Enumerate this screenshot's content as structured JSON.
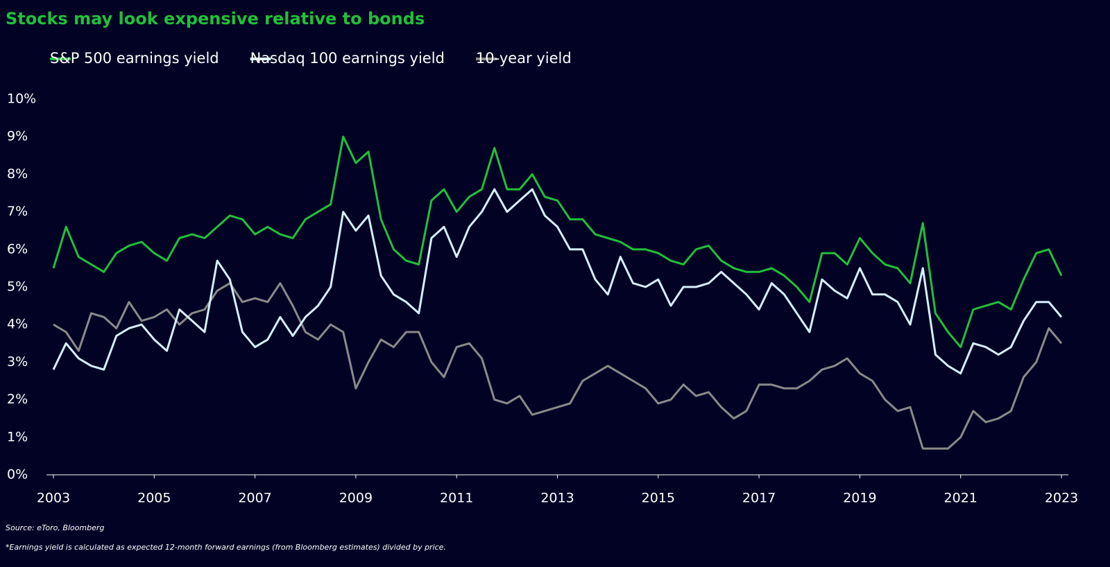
{
  "chart_data": {
    "type": "line",
    "title": "Stocks may look expensive relative to bonds",
    "source": "Source: eToro, Bloomberg",
    "footnote": "*Earnings yield is calculated as expected 12-month forward earnings (from Bloomberg estimates) divided by price.",
    "x": [
      2003,
      2003.25,
      2003.5,
      2003.75,
      2004,
      2004.25,
      2004.5,
      2004.75,
      2005,
      2005.25,
      2005.5,
      2005.75,
      2006,
      2006.25,
      2006.5,
      2006.75,
      2007,
      2007.25,
      2007.5,
      2007.75,
      2008,
      2008.25,
      2008.5,
      2008.75,
      2009,
      2009.25,
      2009.5,
      2009.75,
      2010,
      2010.25,
      2010.5,
      2010.75,
      2011,
      2011.25,
      2011.5,
      2011.75,
      2012,
      2012.25,
      2012.5,
      2012.75,
      2013,
      2013.25,
      2013.5,
      2013.75,
      2014,
      2014.25,
      2014.5,
      2014.75,
      2015,
      2015.25,
      2015.5,
      2015.75,
      2016,
      2016.25,
      2016.5,
      2016.75,
      2017,
      2017.25,
      2017.5,
      2017.75,
      2018,
      2018.25,
      2018.5,
      2018.75,
      2019,
      2019.25,
      2019.5,
      2019.75,
      2020,
      2020.25,
      2020.5,
      2020.75,
      2021,
      2021.25,
      2021.5,
      2021.75,
      2022,
      2022.25,
      2022.5,
      2022.75,
      2023
    ],
    "series": [
      {
        "name": "S&P 500 earnings yield",
        "color": "#22c03a",
        "values": [
          5.5,
          6.6,
          5.8,
          5.6,
          5.4,
          5.9,
          6.1,
          6.2,
          5.9,
          5.7,
          6.3,
          6.4,
          6.3,
          6.6,
          6.9,
          6.8,
          6.4,
          6.6,
          6.4,
          6.3,
          6.8,
          7.0,
          7.2,
          9.0,
          8.3,
          8.6,
          6.8,
          6.0,
          5.7,
          5.6,
          7.3,
          7.6,
          7.0,
          7.4,
          7.6,
          8.7,
          7.6,
          7.6,
          8.0,
          7.4,
          7.3,
          6.8,
          6.8,
          6.4,
          6.3,
          6.2,
          6.0,
          6.0,
          5.9,
          5.7,
          5.6,
          6.0,
          6.1,
          5.7,
          5.5,
          5.4,
          5.4,
          5.5,
          5.3,
          5.0,
          4.6,
          5.9,
          5.9,
          5.6,
          6.3,
          5.9,
          5.6,
          5.5,
          5.1,
          6.7,
          4.3,
          3.8,
          3.4,
          4.4,
          4.5,
          4.6,
          4.4,
          5.2,
          5.9,
          6.0,
          5.3
        ]
      },
      {
        "name": "Nasdaq 100 earnings yield",
        "color": "#d6f0ff",
        "values": [
          2.8,
          3.5,
          3.1,
          2.9,
          2.8,
          3.7,
          3.9,
          4.0,
          3.6,
          3.3,
          4.4,
          4.1,
          3.8,
          5.7,
          5.2,
          3.8,
          3.4,
          3.6,
          4.2,
          3.7,
          4.2,
          4.5,
          5.0,
          7.0,
          6.5,
          6.9,
          5.3,
          4.8,
          4.6,
          4.3,
          6.3,
          6.6,
          5.8,
          6.6,
          7.0,
          7.6,
          7.0,
          7.3,
          7.6,
          6.9,
          6.6,
          6.0,
          6.0,
          5.2,
          4.8,
          5.8,
          5.1,
          5.0,
          5.2,
          4.5,
          5.0,
          5.0,
          5.1,
          5.4,
          5.1,
          4.8,
          4.4,
          5.1,
          4.8,
          4.3,
          3.8,
          5.2,
          4.9,
          4.7,
          5.5,
          4.8,
          4.8,
          4.6,
          4.0,
          5.5,
          3.2,
          2.9,
          2.7,
          3.5,
          3.4,
          3.2,
          3.4,
          4.1,
          4.6,
          4.6,
          4.2
        ]
      },
      {
        "name": "10-year yield",
        "color": "#8a8a8a",
        "values": [
          4.0,
          3.8,
          3.3,
          4.3,
          4.2,
          3.9,
          4.6,
          4.1,
          4.2,
          4.4,
          4.0,
          4.3,
          4.4,
          4.9,
          5.1,
          4.6,
          4.7,
          4.6,
          5.1,
          4.5,
          3.8,
          3.6,
          4.0,
          3.8,
          2.3,
          3.0,
          3.6,
          3.4,
          3.8,
          3.8,
          3.0,
          2.6,
          3.4,
          3.5,
          3.1,
          2.0,
          1.9,
          2.1,
          1.6,
          1.7,
          1.8,
          1.9,
          2.5,
          2.7,
          2.9,
          2.7,
          2.5,
          2.3,
          1.9,
          2.0,
          2.4,
          2.1,
          2.2,
          1.8,
          1.5,
          1.7,
          2.4,
          2.4,
          2.3,
          2.3,
          2.5,
          2.8,
          2.9,
          3.1,
          2.7,
          2.5,
          2.0,
          1.7,
          1.8,
          0.7,
          0.7,
          0.7,
          1.0,
          1.7,
          1.4,
          1.5,
          1.7,
          2.6,
          3.0,
          3.9,
          3.5
        ]
      }
    ],
    "xlim": [
      2003,
      2023
    ],
    "xticks": [
      2003,
      2005,
      2007,
      2009,
      2011,
      2013,
      2015,
      2017,
      2019,
      2021,
      2023
    ],
    "ylim": [
      0,
      10
    ],
    "yticks": [
      {
        "value": 0,
        "label": "0%"
      },
      {
        "value": 1,
        "label": "1%"
      },
      {
        "value": 2,
        "label": "2%"
      },
      {
        "value": 3,
        "label": "3%"
      },
      {
        "value": 4,
        "label": "4%"
      },
      {
        "value": 5,
        "label": "5%"
      },
      {
        "value": 6,
        "label": "6%"
      },
      {
        "value": 7,
        "label": "7%"
      },
      {
        "value": 8,
        "label": "8%"
      },
      {
        "value": 9,
        "label": "9%"
      },
      {
        "value": 10,
        "label": "10%"
      }
    ],
    "grid": false,
    "legend": "top"
  }
}
